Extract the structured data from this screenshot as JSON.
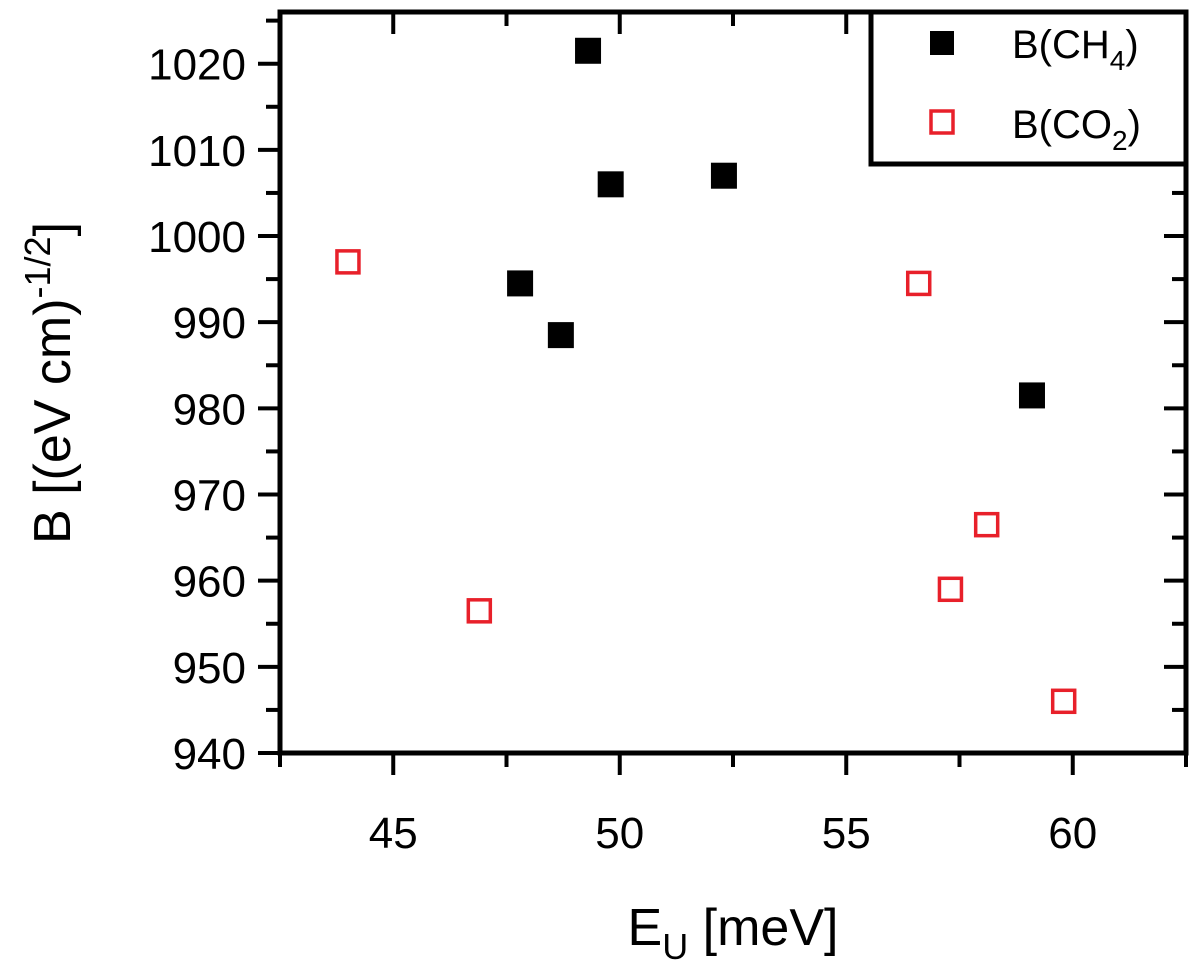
{
  "chart_data": {
    "type": "scatter",
    "xlabel": {
      "main": "E",
      "sub": "U",
      "rest": " [meV]"
    },
    "ylabel": {
      "main": "B [(eV cm)",
      "sup": "-1/2",
      "close": "]"
    },
    "xlim": [
      42.5,
      62.5
    ],
    "ylim": [
      940,
      1026
    ],
    "xticks": [
      45,
      50,
      55,
      60
    ],
    "yticks": [
      940,
      950,
      960,
      970,
      980,
      990,
      1000,
      1010,
      1020
    ],
    "grid": false,
    "legend": "top-right",
    "series": [
      {
        "name": {
          "main": "B(CH",
          "sub": "4",
          "close": ")"
        },
        "marker": "filled-square",
        "color": "#000000",
        "points": [
          {
            "x": 47.8,
            "y": 994.5
          },
          {
            "x": 48.7,
            "y": 988.5
          },
          {
            "x": 49.3,
            "y": 1021.5
          },
          {
            "x": 49.8,
            "y": 1006.0
          },
          {
            "x": 52.3,
            "y": 1007.0
          },
          {
            "x": 59.1,
            "y": 981.5
          }
        ]
      },
      {
        "name": {
          "main": "B(CO",
          "sub": "2",
          "close": ")"
        },
        "marker": "open-square",
        "color": "#e8202a",
        "points": [
          {
            "x": 44.0,
            "y": 997.0
          },
          {
            "x": 46.9,
            "y": 956.5
          },
          {
            "x": 56.6,
            "y": 994.5
          },
          {
            "x": 57.3,
            "y": 959.0
          },
          {
            "x": 58.1,
            "y": 966.5
          },
          {
            "x": 59.8,
            "y": 946.0
          }
        ]
      }
    ]
  }
}
